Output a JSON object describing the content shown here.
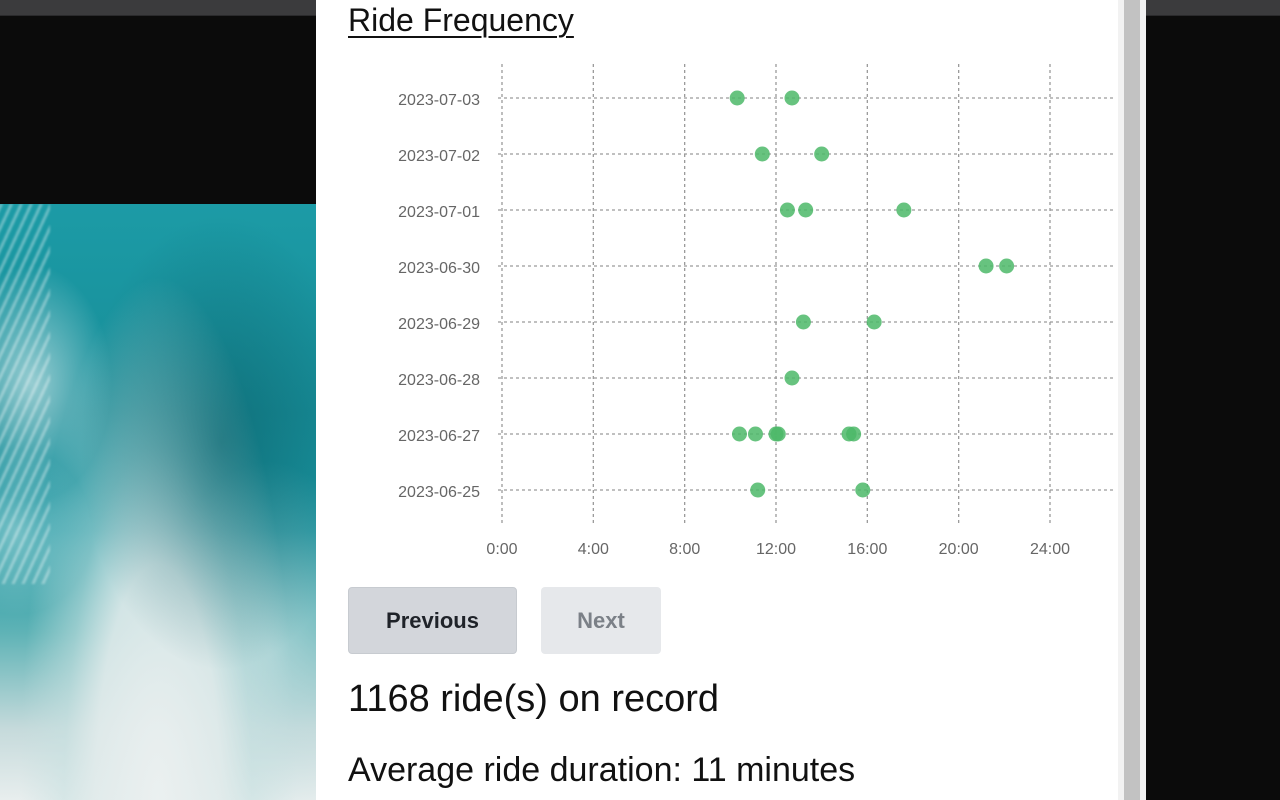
{
  "page": {
    "title": "Ride Frequency",
    "buttons": {
      "previous": "Previous",
      "next": "Next"
    },
    "ride_count_text": "1168 ride(s) on record",
    "avg_duration_text": "Average ride duration: 11 minutes"
  },
  "colors": {
    "point": "#4cb868",
    "grid": "#9a9a9a"
  },
  "chart_data": {
    "type": "scatter",
    "title": "Ride Frequency",
    "xlabel": "",
    "ylabel": "",
    "x_ticks": [
      "0:00",
      "4:00",
      "8:00",
      "12:00",
      "16:00",
      "20:00",
      "24:00"
    ],
    "xlim": [
      0,
      24
    ],
    "y_categories": [
      "2023-07-03",
      "2023-07-02",
      "2023-07-01",
      "2023-06-30",
      "2023-06-29",
      "2023-06-28",
      "2023-06-27",
      "2023-06-25"
    ],
    "grid": true,
    "points": [
      {
        "date": "2023-07-03",
        "hour": 10.3
      },
      {
        "date": "2023-07-03",
        "hour": 12.7
      },
      {
        "date": "2023-07-02",
        "hour": 11.4
      },
      {
        "date": "2023-07-02",
        "hour": 14.0
      },
      {
        "date": "2023-07-01",
        "hour": 12.5
      },
      {
        "date": "2023-07-01",
        "hour": 13.3
      },
      {
        "date": "2023-07-01",
        "hour": 17.6
      },
      {
        "date": "2023-06-30",
        "hour": 21.2
      },
      {
        "date": "2023-06-30",
        "hour": 22.1
      },
      {
        "date": "2023-06-29",
        "hour": 13.2
      },
      {
        "date": "2023-06-29",
        "hour": 16.3
      },
      {
        "date": "2023-06-28",
        "hour": 12.7
      },
      {
        "date": "2023-06-27",
        "hour": 10.4
      },
      {
        "date": "2023-06-27",
        "hour": 11.1
      },
      {
        "date": "2023-06-27",
        "hour": 12.0
      },
      {
        "date": "2023-06-27",
        "hour": 12.1
      },
      {
        "date": "2023-06-27",
        "hour": 15.2
      },
      {
        "date": "2023-06-27",
        "hour": 15.4
      },
      {
        "date": "2023-06-25",
        "hour": 11.2
      },
      {
        "date": "2023-06-25",
        "hour": 15.8
      }
    ]
  }
}
